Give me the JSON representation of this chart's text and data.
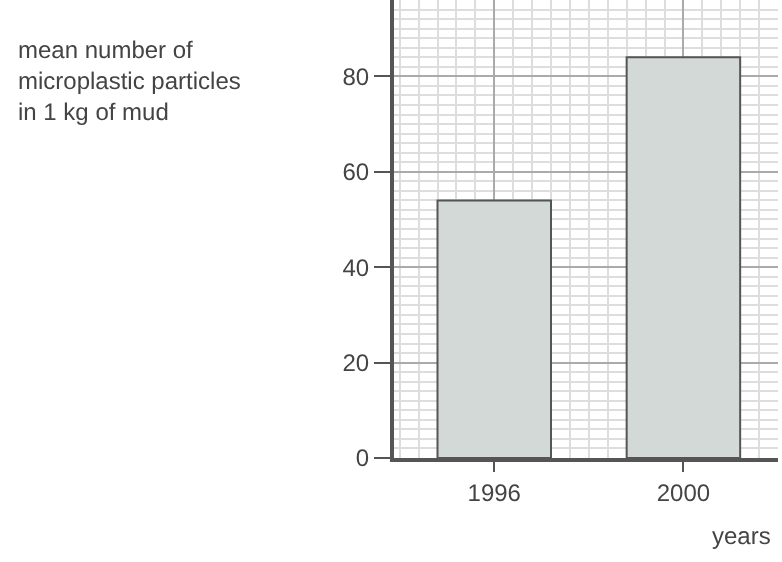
{
  "chart_data": {
    "type": "bar",
    "ylabel": "mean number of\nmicroplastic particles\nin 1 kg of mud",
    "xlabel": "years",
    "categories": [
      "1996",
      "2000"
    ],
    "values": [
      54,
      84
    ],
    "color": "#d3d9d7",
    "ylim": [
      0,
      96
    ],
    "yticks": [
      0,
      20,
      40,
      60,
      80
    ],
    "grid": true
  }
}
